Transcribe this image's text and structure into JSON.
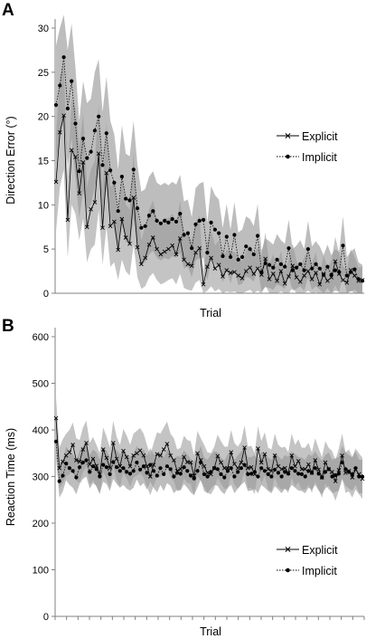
{
  "chart_data": [
    {
      "panel_label": "A",
      "type": "line",
      "xlabel": "Trial",
      "ylabel": "Direction Error (°)",
      "ylim": [
        0,
        30
      ],
      "yticks": [
        0,
        5,
        10,
        15,
        20,
        25,
        30
      ],
      "x_tick_count": 0,
      "legend_position": "right",
      "series": [
        {
          "name": "Explicit",
          "marker": "x",
          "line_style": "solid",
          "values": [
            12.6,
            18.2,
            20.1,
            8.3,
            16.2,
            15.4,
            11.3,
            14.8,
            7.5,
            9.5,
            10.3,
            15.8,
            7.4,
            13.6,
            7.6,
            8.1,
            4.9,
            8.4,
            6.3,
            5.6,
            10.8,
            5.2,
            3.3,
            4.0,
            5.5,
            6.3,
            5.0,
            4.4,
            4.7,
            5.0,
            5.4,
            4.4,
            6.2,
            3.8,
            3.3,
            3.1,
            4.6,
            5.1,
            1.0,
            3.0,
            4.0,
            2.8,
            3.2,
            1.9,
            2.6,
            2.3,
            2.4,
            2.0,
            1.7,
            2.5,
            2.9,
            2.2,
            2.8,
            2.1,
            3.9,
            1.6,
            2.2,
            1.4,
            2.5,
            1.1,
            1.9,
            3.1,
            1.8,
            1.3,
            2.0,
            2.5,
            1.6,
            2.3,
            1.0,
            2.1,
            1.4,
            1.8,
            3.6,
            2.2,
            1.5,
            1.2,
            2.6,
            2.0,
            1.4,
            1.5
          ],
          "band_lower": [
            7.0,
            12.0,
            14.0,
            4.0,
            10.0,
            9.0,
            6.0,
            8.5,
            3.5,
            5.0,
            5.5,
            9.5,
            3.2,
            7.5,
            3.0,
            3.5,
            1.5,
            3.8,
            2.5,
            2.0,
            5.5,
            1.8,
            0.5,
            0.8,
            1.8,
            2.3,
            1.5,
            1.0,
            1.2,
            1.5,
            1.7,
            1.0,
            2.2,
            0.6,
            0.4,
            0.3,
            1.2,
            1.5,
            0.0,
            0.3,
            0.8,
            0.2,
            0.5,
            0.0,
            0.2,
            0.1,
            0.2,
            0.0,
            0.0,
            0.2,
            0.4,
            0.0,
            0.3,
            0.0,
            0.9,
            0.0,
            0.0,
            0.0,
            0.2,
            0.0,
            0.0,
            0.6,
            0.0,
            0.0,
            0.0,
            0.3,
            0.0,
            0.1,
            0.0,
            0.0,
            0.0,
            0.0,
            0.9,
            0.0,
            0.0,
            0.0,
            0.3,
            0.0,
            0.0,
            0.0
          ],
          "band_upper": [
            18.0,
            24.5,
            26.0,
            13.0,
            22.0,
            21.0,
            16.5,
            20.5,
            12.0,
            14.0,
            15.0,
            21.5,
            11.5,
            19.5,
            12.0,
            12.5,
            8.5,
            13.0,
            10.0,
            9.5,
            16.0,
            9.0,
            6.0,
            7.5,
            9.5,
            10.5,
            8.5,
            8.0,
            8.5,
            8.5,
            9.0,
            7.8,
            10.5,
            7.0,
            6.5,
            6.0,
            8.0,
            8.8,
            2.5,
            5.8,
            7.2,
            5.4,
            6.0,
            4.0,
            5.0,
            4.6,
            4.7,
            4.2,
            3.6,
            4.8,
            5.4,
            4.4,
            5.3,
            4.2,
            6.9,
            3.3,
            4.4,
            3.0,
            4.8,
            2.4,
            3.9,
            5.6,
            3.7,
            2.8,
            4.1,
            4.8,
            3.4,
            4.6,
            2.2,
            4.3,
            2.9,
            3.7,
            6.4,
            4.5,
            3.1,
            2.6,
            5.0,
            4.1,
            2.9,
            3.0
          ]
        },
        {
          "name": "Implicit",
          "marker": "dot",
          "line_style": "dotted",
          "values": [
            21.3,
            23.5,
            26.7,
            20.9,
            24.0,
            19.2,
            13.8,
            17.5,
            15.3,
            16.0,
            18.4,
            20.0,
            14.5,
            18.1,
            13.9,
            12.5,
            9.3,
            13.2,
            10.7,
            10.5,
            14.0,
            9.6,
            7.4,
            7.6,
            8.8,
            9.3,
            8.2,
            7.9,
            8.2,
            8.0,
            8.4,
            8.1,
            9.0,
            6.6,
            6.8,
            5.1,
            7.8,
            8.2,
            8.3,
            4.6,
            8.0,
            7.2,
            6.8,
            4.2,
            6.4,
            4.1,
            6.6,
            3.8,
            4.1,
            5.3,
            5.0,
            4.4,
            6.5,
            2.4,
            3.4,
            3.2,
            2.9,
            3.8,
            3.3,
            3.0,
            5.1,
            2.6,
            2.9,
            3.3,
            2.6,
            5.0,
            2.8,
            3.3,
            2.8,
            2.1,
            3.0,
            2.1,
            2.6,
            2.4,
            5.4,
            2.0,
            2.4,
            2.7,
            1.6,
            1.4
          ],
          "band_lower": [
            15.0,
            17.5,
            20.0,
            14.5,
            17.5,
            13.0,
            8.5,
            11.5,
            9.5,
            10.0,
            12.0,
            13.5,
            8.8,
            12.0,
            8.5,
            7.2,
            4.8,
            7.8,
            5.8,
            5.7,
            8.5,
            5.0,
            3.4,
            3.5,
            4.4,
            4.8,
            4.0,
            3.7,
            4.0,
            3.8,
            4.2,
            4.0,
            4.6,
            2.8,
            3.0,
            1.8,
            3.7,
            4.0,
            4.0,
            1.4,
            3.9,
            3.3,
            3.0,
            1.2,
            2.7,
            1.1,
            2.9,
            0.9,
            1.1,
            1.9,
            1.7,
            1.3,
            2.9,
            0.2,
            0.7,
            0.6,
            0.4,
            1.0,
            0.8,
            0.5,
            1.9,
            0.3,
            0.5,
            0.8,
            0.3,
            1.8,
            0.4,
            0.8,
            0.4,
            0.0,
            0.6,
            0.0,
            0.3,
            0.2,
            2.1,
            0.0,
            0.2,
            0.4,
            0.0,
            0.0
          ],
          "band_upper": [
            28.0,
            30.0,
            31.5,
            27.5,
            30.5,
            25.5,
            19.5,
            24.0,
            21.5,
            22.0,
            25.0,
            26.5,
            20.5,
            24.5,
            19.5,
            18.0,
            14.0,
            19.0,
            15.8,
            15.5,
            19.5,
            14.5,
            11.5,
            11.8,
            13.2,
            13.8,
            12.5,
            12.2,
            12.5,
            12.2,
            12.6,
            12.3,
            13.4,
            10.4,
            10.6,
            8.6,
            11.9,
            12.4,
            12.6,
            8.0,
            12.1,
            11.1,
            10.6,
            7.4,
            10.1,
            7.2,
            10.3,
            6.9,
            7.2,
            8.7,
            8.4,
            7.6,
            10.1,
            4.8,
            6.2,
            5.9,
            5.5,
            6.7,
            6.0,
            5.6,
            8.3,
            5.0,
            5.4,
            6.0,
            5.0,
            8.2,
            5.3,
            5.9,
            5.3,
            4.3,
            5.5,
            4.3,
            5.0,
            4.7,
            8.7,
            4.1,
            4.7,
            5.1,
            3.5,
            3.2
          ]
        }
      ]
    },
    {
      "panel_label": "B",
      "type": "line",
      "xlabel": "Trial",
      "ylabel": "Reaction Time (ms)",
      "ylim": [
        0,
        600
      ],
      "yticks": [
        0,
        100,
        200,
        300,
        400,
        500,
        600
      ],
      "x_tick_count": 27,
      "legend_position": "bottom-right",
      "series": [
        {
          "name": "Explicit",
          "marker": "x",
          "line_style": "solid",
          "values": [
            425,
            318,
            332,
            345,
            352,
            368,
            335,
            332,
            358,
            372,
            326,
            338,
            323,
            305,
            358,
            340,
            318,
            372,
            338,
            322,
            355,
            342,
            322,
            345,
            350,
            356,
            345,
            322,
            300,
            325,
            348,
            345,
            358,
            370,
            345,
            335,
            312,
            316,
            342,
            331,
            330,
            302,
            350,
            335,
            322,
            308,
            305,
            318,
            344,
            330,
            318,
            318,
            352,
            327,
            318,
            330,
            362,
            318,
            320,
            305,
            360,
            330,
            348,
            316,
            312,
            345,
            322,
            316,
            318,
            308,
            345,
            322,
            333,
            316,
            316,
            326,
            308,
            335,
            315,
            298,
            330,
            316,
            310,
            290,
            314,
            345,
            308,
            312,
            298,
            315,
            305,
            295
          ],
          "band_lower": [
            375,
            275,
            285,
            300,
            305,
            318,
            290,
            287,
            310,
            322,
            282,
            292,
            278,
            262,
            310,
            295,
            275,
            322,
            292,
            278,
            308,
            296,
            278,
            298,
            302,
            307,
            298,
            278,
            260,
            280,
            300,
            298,
            310,
            322,
            298,
            290,
            268,
            272,
            296,
            286,
            285,
            260,
            302,
            290,
            278,
            265,
            262,
            274,
            298,
            285,
            274,
            274,
            304,
            282,
            274,
            285,
            312,
            274,
            276,
            262,
            312,
            285,
            302,
            272,
            268,
            298,
            278,
            272,
            274,
            265,
            298,
            278,
            288,
            272,
            272,
            282,
            265,
            290,
            272,
            255,
            285,
            272,
            267,
            248,
            270,
            298,
            265,
            268,
            255,
            272,
            262,
            252
          ],
          "band_upper": [
            470,
            362,
            380,
            392,
            400,
            416,
            382,
            378,
            405,
            420,
            372,
            385,
            368,
            350,
            405,
            386,
            362,
            420,
            385,
            368,
            402,
            388,
            368,
            392,
            398,
            404,
            392,
            368,
            345,
            372,
            395,
            392,
            405,
            418,
            392,
            382,
            358,
            362,
            388,
            378,
            376,
            345,
            398,
            382,
            368,
            352,
            350,
            364,
            390,
            376,
            364,
            364,
            400,
            372,
            364,
            376,
            410,
            364,
            366,
            350,
            408,
            376,
            395,
            362,
            358,
            392,
            368,
            362,
            364,
            352,
            392,
            368,
            380,
            362,
            362,
            372,
            352,
            382,
            360,
            342,
            376,
            362,
            355,
            335,
            360,
            392,
            352,
            358,
            342,
            360,
            350,
            340
          ]
        },
        {
          "name": "Implicit",
          "marker": "dot",
          "line_style": "dotted",
          "values": [
            375,
            290,
            302,
            328,
            318,
            312,
            298,
            320,
            330,
            335,
            310,
            322,
            316,
            300,
            325,
            320,
            305,
            331,
            320,
            312,
            318,
            310,
            306,
            312,
            330,
            315,
            322,
            308,
            325,
            312,
            302,
            318,
            305,
            322,
            316,
            300,
            308,
            306,
            320,
            312,
            302,
            296,
            312,
            330,
            305,
            300,
            310,
            318,
            316,
            305,
            298,
            312,
            318,
            300,
            310,
            318,
            325,
            305,
            306,
            310,
            300,
            318,
            312,
            305,
            300,
            315,
            308,
            300,
            310,
            306,
            318,
            312,
            306,
            305,
            300,
            312,
            308,
            318,
            306,
            298,
            310,
            316,
            300,
            303,
            306,
            330,
            316,
            310,
            305,
            318,
            300,
            300
          ],
          "band_lower": [
            340,
            255,
            268,
            292,
            282,
            276,
            262,
            284,
            295,
            300,
            274,
            286,
            280,
            264,
            289,
            284,
            269,
            295,
            284,
            276,
            282,
            274,
            270,
            276,
            294,
            279,
            286,
            272,
            289,
            276,
            266,
            282,
            269,
            286,
            280,
            264,
            272,
            270,
            284,
            276,
            266,
            260,
            276,
            294,
            269,
            264,
            274,
            282,
            280,
            269,
            262,
            276,
            282,
            264,
            274,
            282,
            289,
            269,
            270,
            274,
            264,
            282,
            276,
            269,
            264,
            279,
            272,
            264,
            274,
            270,
            282,
            276,
            270,
            269,
            264,
            276,
            272,
            282,
            270,
            262,
            274,
            280,
            264,
            267,
            270,
            294,
            280,
            274,
            269,
            282,
            264,
            264
          ],
          "band_upper": [
            410,
            325,
            336,
            364,
            354,
            348,
            334,
            356,
            365,
            370,
            346,
            358,
            352,
            336,
            361,
            356,
            341,
            367,
            356,
            348,
            354,
            346,
            342,
            348,
            366,
            351,
            358,
            344,
            361,
            348,
            338,
            354,
            341,
            358,
            352,
            336,
            344,
            342,
            356,
            348,
            338,
            332,
            348,
            366,
            341,
            336,
            346,
            354,
            352,
            341,
            334,
            348,
            354,
            336,
            346,
            354,
            361,
            341,
            342,
            346,
            336,
            354,
            348,
            341,
            336,
            351,
            344,
            336,
            346,
            342,
            354,
            348,
            342,
            341,
            336,
            348,
            344,
            354,
            342,
            334,
            346,
            352,
            336,
            339,
            342,
            366,
            352,
            346,
            341,
            354,
            336,
            336
          ]
        }
      ]
    }
  ]
}
